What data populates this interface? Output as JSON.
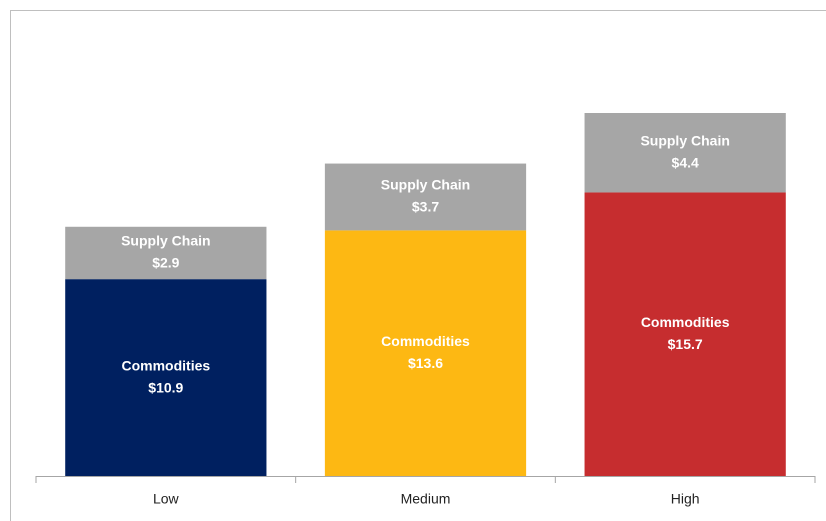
{
  "chart_data": {
    "type": "stacked-bar",
    "categories": [
      "Low",
      "Medium",
      "High"
    ],
    "series": [
      {
        "name": "Commodities",
        "colors": [
          "#002060",
          "#fdb813",
          "#c62d2f"
        ],
        "values": [
          10.9,
          13.6,
          15.7
        ],
        "value_labels": [
          "$10.9",
          "$13.6",
          "$15.7"
        ]
      },
      {
        "name": "Supply Chain",
        "color": "#a6a6a6",
        "values": [
          2.9,
          3.7,
          4.4
        ],
        "value_labels": [
          "$2.9",
          "$3.7",
          "$4.4"
        ]
      }
    ]
  }
}
